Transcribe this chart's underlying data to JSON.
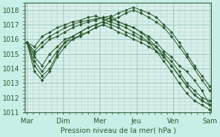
{
  "background_color": "#c8eee8",
  "plot_bg_color": "#d8f0ec",
  "grid_color": "#a0c8c0",
  "line_color": "#2d5a2d",
  "marker_color": "#2d5a2d",
  "xlabel": "Pression niveau de la mer( hPa )",
  "ylim": [
    1011,
    1018.5
  ],
  "yticks": [
    1011,
    1012,
    1013,
    1014,
    1015,
    1016,
    1017,
    1018
  ],
  "xtick_labels": [
    "Mar",
    "Dim",
    "Mer",
    "Jeu",
    "Ven",
    "Sam"
  ],
  "xtick_positions": [
    0,
    1,
    2,
    3,
    4,
    5
  ],
  "series": [
    [
      1015.8,
      1015.0,
      1015.5,
      1016.0,
      1016.2,
      1016.5,
      1016.8,
      1017.0,
      1017.2,
      1017.3,
      1017.5,
      1017.6,
      1017.2,
      1017.0,
      1016.8,
      1016.5,
      1016.2,
      1015.8,
      1015.2,
      1014.8,
      1014.2,
      1013.8,
      1013.2,
      1012.5,
      1011.5
    ],
    [
      1015.8,
      1014.8,
      1014.2,
      1015.0,
      1015.5,
      1016.0,
      1016.2,
      1016.5,
      1016.8,
      1017.0,
      1017.2,
      1017.5,
      1017.8,
      1018.0,
      1018.2,
      1018.0,
      1017.8,
      1017.5,
      1017.0,
      1016.5,
      1015.8,
      1015.0,
      1014.2,
      1013.5,
      1012.8
    ],
    [
      1015.8,
      1014.5,
      1013.8,
      1014.5,
      1015.2,
      1015.8,
      1016.0,
      1016.3,
      1016.5,
      1016.8,
      1017.0,
      1017.3,
      1017.5,
      1017.8,
      1018.0,
      1017.8,
      1017.5,
      1017.2,
      1016.8,
      1016.2,
      1015.5,
      1014.8,
      1014.0,
      1013.2,
      1012.5
    ],
    [
      1015.8,
      1015.2,
      1015.8,
      1016.2,
      1016.5,
      1016.8,
      1017.0,
      1017.2,
      1017.3,
      1017.4,
      1017.5,
      1017.4,
      1017.2,
      1017.0,
      1016.8,
      1016.5,
      1016.0,
      1015.5,
      1014.8,
      1014.2,
      1013.5,
      1012.8,
      1012.2,
      1011.8,
      1011.5
    ],
    [
      1015.8,
      1015.5,
      1016.2,
      1016.5,
      1016.8,
      1017.0,
      1017.2,
      1017.3,
      1017.5,
      1017.6,
      1017.4,
      1017.2,
      1017.0,
      1016.8,
      1016.5,
      1016.2,
      1015.8,
      1015.2,
      1014.5,
      1013.8,
      1013.0,
      1012.3,
      1011.8,
      1011.5,
      1011.2
    ],
    [
      1015.8,
      1014.2,
      1013.5,
      1014.0,
      1015.0,
      1015.8,
      1016.2,
      1016.5,
      1016.8,
      1017.0,
      1017.2,
      1017.0,
      1016.8,
      1016.5,
      1016.3,
      1016.0,
      1015.8,
      1015.5,
      1015.0,
      1014.5,
      1013.8,
      1013.0,
      1012.5,
      1012.0,
      1011.8
    ],
    [
      1015.8,
      1013.8,
      1013.2,
      1013.8,
      1014.8,
      1015.5,
      1016.0,
      1016.2,
      1016.5,
      1016.8,
      1017.0,
      1016.8,
      1016.5,
      1016.3,
      1016.0,
      1015.8,
      1015.5,
      1015.2,
      1014.8,
      1014.2,
      1013.5,
      1012.8,
      1012.2,
      1011.8,
      1011.5
    ]
  ]
}
